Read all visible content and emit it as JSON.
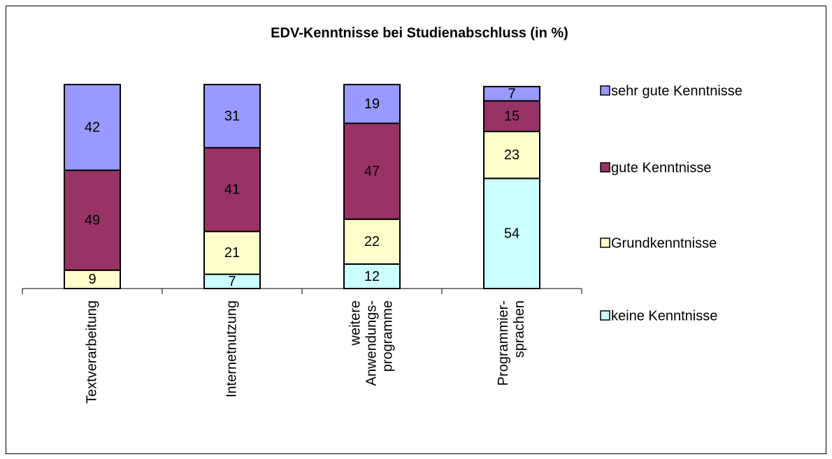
{
  "chart_data": {
    "type": "stacked_bar",
    "title": "EDV-Kenntnisse bei Studienabschluss (in %)",
    "categories": [
      [
        "Textverarbeitung"
      ],
      [
        "Internetnutzung"
      ],
      [
        "weitere",
        "Anwendungs-",
        "programme"
      ],
      [
        "Programmier-",
        "sprachen"
      ]
    ],
    "series": [
      {
        "name": "keine Kenntnisse",
        "color": "#ccffff",
        "values": [
          null,
          7,
          12,
          54
        ]
      },
      {
        "name": "Grundkenntnisse",
        "color": "#ffffcc",
        "values": [
          9,
          21,
          22,
          23
        ]
      },
      {
        "name": "gute Kenntnisse",
        "color": "#993366",
        "values": [
          49,
          41,
          47,
          15
        ]
      },
      {
        "name": "sehr gute Kenntnisse",
        "color": "#9999ff",
        "values": [
          42,
          31,
          19,
          7
        ]
      }
    ],
    "ylim": [
      0,
      100
    ],
    "legend": "right"
  }
}
